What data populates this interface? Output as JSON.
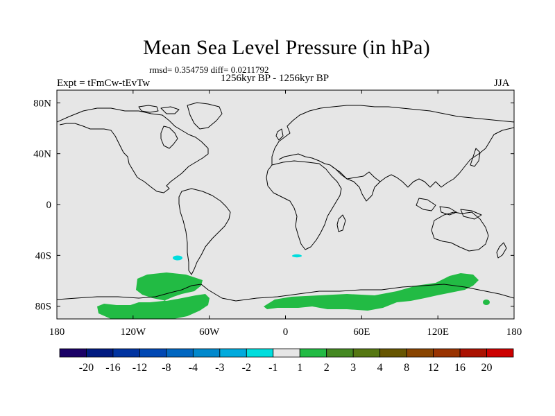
{
  "map": {
    "title": "Mean Sea Level Pressure (in hPa)",
    "stats": "rmsd= 0.354759 diff= 0.0211792",
    "period": "1256kyr BP - 1256kyr BP",
    "experiment": "Expt = tFmCw-tEvTw",
    "season": "JJA",
    "lat_labels": [
      "80N",
      "40N",
      "0",
      "40S",
      "80S"
    ],
    "lon_labels": [
      "180",
      "120W",
      "60W",
      "0",
      "60E",
      "120E",
      "180"
    ],
    "lat_range": [
      -90,
      90
    ],
    "lon_range": [
      -180,
      180
    ]
  },
  "colorbar": {
    "colors": [
      "#1a0066",
      "#001a80",
      "#0033a0",
      "#0047b3",
      "#0066c0",
      "#0088cc",
      "#00aadd",
      "#00dddd",
      "#e6e6e6",
      "#22bb44",
      "#448822",
      "#557711",
      "#665500",
      "#884400",
      "#993300",
      "#aa1100",
      "#cc0000"
    ],
    "labels": [
      "-20",
      "-16",
      "-12",
      "-8",
      "-4",
      "-3",
      "-2",
      "-1",
      "1",
      "2",
      "3",
      "4",
      "8",
      "12",
      "16",
      "20"
    ]
  }
}
